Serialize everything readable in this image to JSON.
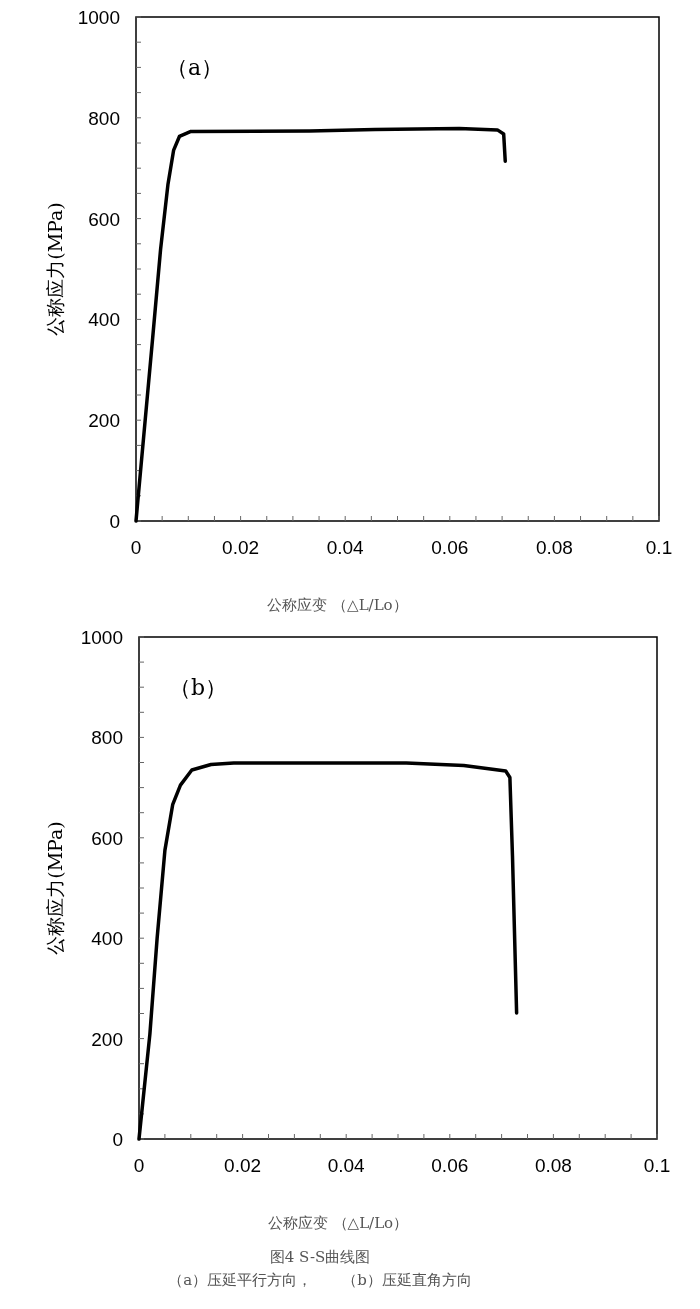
{
  "chart_data": [
    {
      "type": "line",
      "ylabel": "公称应力(MPa)",
      "xlabel": "公称应变 （△L/Lo）",
      "annotations": [
        "（a）"
      ],
      "xlim": [
        0,
        0.1
      ],
      "ylim": [
        0,
        1000
      ],
      "xticks": [
        0,
        {
          "value": 0.005,
          "label": null
        },
        {
          "value": 0.01,
          "label": null
        },
        {
          "value": 0.015,
          "label": null
        },
        0.02,
        {
          "value": 0.025,
          "label": null
        },
        {
          "value": 0.03,
          "label": null
        },
        {
          "value": 0.035,
          "label": null
        },
        0.04,
        {
          "value": 0.045,
          "label": null
        },
        {
          "value": 0.05,
          "label": null
        },
        {
          "value": 0.055,
          "label": null
        },
        0.06,
        {
          "value": 0.065,
          "label": null
        },
        {
          "value": 0.07,
          "label": null
        },
        {
          "value": 0.075,
          "label": null
        },
        0.08,
        {
          "value": 0.085,
          "label": null
        },
        {
          "value": 0.09,
          "label": null
        },
        {
          "value": 0.095,
          "label": null
        },
        0.1
      ],
      "yticks": [
        0,
        {
          "value": 50,
          "label": null
        },
        {
          "value": 100,
          "label": null
        },
        {
          "value": 150,
          "label": null
        },
        200,
        {
          "value": 250,
          "label": null
        },
        {
          "value": 300,
          "label": null
        },
        {
          "value": 350,
          "label": null
        },
        400,
        {
          "value": 450,
          "label": null
        },
        {
          "value": 500,
          "label": null
        },
        {
          "value": 550,
          "label": null
        },
        600,
        {
          "value": 650,
          "label": null
        },
        {
          "value": 700,
          "label": null
        },
        {
          "value": 750,
          "label": null
        },
        800,
        {
          "value": 850,
          "label": null
        },
        {
          "value": 900,
          "label": null
        },
        {
          "value": 950,
          "label": null
        },
        1000
      ],
      "line_style": "solid",
      "series": [
        {
          "color": "#000000",
          "x": [
            0,
            0.0032,
            0.0047,
            0.0061,
            0.0072,
            0.0083,
            0.0105,
            0.0332,
            0.0457,
            0.0618,
            0.0691,
            0.0703,
            0.0706
          ],
          "values": [
            0,
            365,
            539,
            667,
            736,
            763,
            773,
            774,
            777,
            779,
            776,
            768,
            714
          ]
        }
      ]
    },
    {
      "type": "line",
      "ylabel": "公称应力(MPa)",
      "xlabel": "公称应变 （△L/Lo）",
      "annotations": [
        "（b）",
        "图4 S-S曲线图",
        "（a）压延平行方向，　　（b）压延直角方向"
      ],
      "xlim": [
        0,
        0.1
      ],
      "ylim": [
        0,
        1000
      ],
      "xticks": [
        0,
        {
          "value": 0.005,
          "label": null
        },
        {
          "value": 0.01,
          "label": null
        },
        {
          "value": 0.015,
          "label": null
        },
        0.02,
        {
          "value": 0.025,
          "label": null
        },
        {
          "value": 0.03,
          "label": null
        },
        {
          "value": 0.035,
          "label": null
        },
        0.04,
        {
          "value": 0.045,
          "label": null
        },
        {
          "value": 0.05,
          "label": null
        },
        {
          "value": 0.055,
          "label": null
        },
        0.06,
        {
          "value": 0.065,
          "label": null
        },
        {
          "value": 0.07,
          "label": null
        },
        {
          "value": 0.075,
          "label": null
        },
        0.08,
        {
          "value": 0.085,
          "label": null
        },
        {
          "value": 0.09,
          "label": null
        },
        {
          "value": 0.095,
          "label": null
        },
        0.1
      ],
      "yticks": [
        0,
        {
          "value": 50,
          "label": null
        },
        {
          "value": 100,
          "label": null
        },
        {
          "value": 150,
          "label": null
        },
        200,
        {
          "value": 250,
          "label": null
        },
        {
          "value": 300,
          "label": null
        },
        {
          "value": 350,
          "label": null
        },
        400,
        {
          "value": 450,
          "label": null
        },
        {
          "value": 500,
          "label": null
        },
        {
          "value": 550,
          "label": null
        },
        600,
        {
          "value": 650,
          "label": null
        },
        {
          "value": 700,
          "label": null
        },
        {
          "value": 750,
          "label": null
        },
        800,
        {
          "value": 850,
          "label": null
        },
        {
          "value": 900,
          "label": null
        },
        {
          "value": 950,
          "label": null
        },
        1000
      ],
      "line_style": "solid",
      "series": [
        {
          "color": "#000000",
          "x": [
            0,
            0.0021,
            0.0035,
            0.005,
            0.0065,
            0.008,
            0.0102,
            0.0139,
            0.0183,
            0.0516,
            0.0627,
            0.0708,
            0.0716,
            0.0721,
            0.0729
          ],
          "values": [
            0,
            209,
            400,
            575,
            666,
            705,
            735,
            746,
            749,
            749,
            744,
            733,
            720,
            564,
            251
          ]
        }
      ]
    }
  ]
}
